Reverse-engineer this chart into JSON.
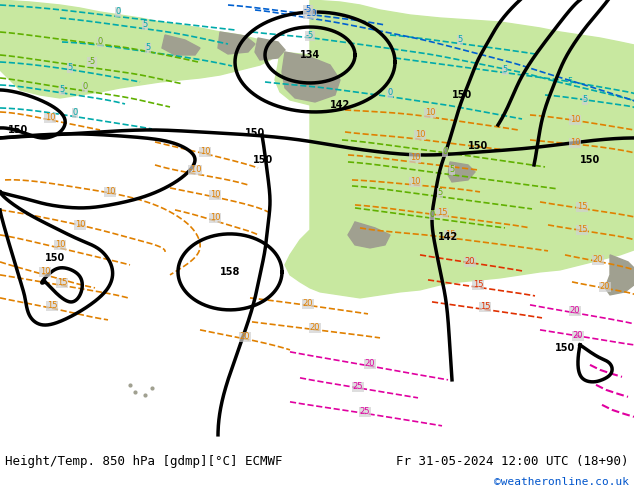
{
  "title_left": "Height/Temp. 850 hPa [gdmp][°C] ECMWF",
  "title_right": "Fr 31-05-2024 12:00 UTC (18+90)",
  "watermark": "©weatheronline.co.uk",
  "watermark_color": "#0055cc",
  "bg_color": "#d8d8d8",
  "fig_width": 6.34,
  "fig_height": 4.9,
  "dpi": 100,
  "bottom_bar_color": "#e8e8e8",
  "title_fontsize": 9,
  "watermark_fontsize": 8,
  "land_green_light": "#c8e8a0",
  "land_green_mid": "#b0d870",
  "mountain_grey": "#a0a090",
  "ocean_bg": "#d0d0d0",
  "height_color": "#000000",
  "orange_color": "#e08000",
  "red_color": "#e03000",
  "cyan_color": "#00aaaa",
  "blue_color": "#0060d0",
  "green_temp_color": "#60b000",
  "pink_color": "#e000a0"
}
